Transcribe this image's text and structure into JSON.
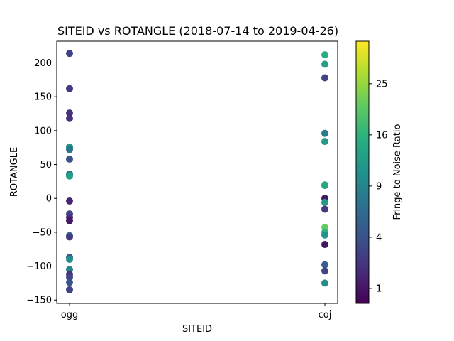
{
  "chart_data": {
    "type": "scatter",
    "title": "SITEID vs ROTANGLE (2018-07-14 to 2019-04-26)",
    "xlabel": "SITEID",
    "ylabel": "ROTANGLE",
    "categories": [
      "ogg",
      "coj"
    ],
    "ylim": [
      -155,
      232
    ],
    "yticks": [
      200,
      150,
      100,
      50,
      0,
      -50,
      -100,
      -150
    ],
    "grid": false,
    "colorbar": {
      "label": "Fringe to Noise Ratio",
      "colormap": "viridis",
      "scale": "sqrt",
      "range": [
        0.5,
        34
      ],
      "ticks": [
        1,
        4,
        9,
        16,
        25
      ]
    },
    "points": [
      {
        "x": "ogg",
        "y": 214,
        "c": 3
      },
      {
        "x": "ogg",
        "y": 162,
        "c": 2.5
      },
      {
        "x": "ogg",
        "y": 126,
        "c": 2
      },
      {
        "x": "ogg",
        "y": 118,
        "c": 2
      },
      {
        "x": "ogg",
        "y": 76,
        "c": 12
      },
      {
        "x": "ogg",
        "y": 74,
        "c": 10
      },
      {
        "x": "ogg",
        "y": 72,
        "c": 7
      },
      {
        "x": "ogg",
        "y": 58,
        "c": 4
      },
      {
        "x": "ogg",
        "y": 36,
        "c": 5
      },
      {
        "x": "ogg",
        "y": 35,
        "c": 9
      },
      {
        "x": "ogg",
        "y": 33,
        "c": 13
      },
      {
        "x": "ogg",
        "y": -4,
        "c": 1.5
      },
      {
        "x": "ogg",
        "y": -23,
        "c": 3
      },
      {
        "x": "ogg",
        "y": -28,
        "c": 2
      },
      {
        "x": "ogg",
        "y": -33,
        "c": 1
      },
      {
        "x": "ogg",
        "y": -55,
        "c": 6
      },
      {
        "x": "ogg",
        "y": -57,
        "c": 2.5
      },
      {
        "x": "ogg",
        "y": -87,
        "c": 5
      },
      {
        "x": "ogg",
        "y": -90,
        "c": 10
      },
      {
        "x": "ogg",
        "y": -105,
        "c": 9
      },
      {
        "x": "ogg",
        "y": -112,
        "c": 2
      },
      {
        "x": "ogg",
        "y": -117,
        "c": 3
      },
      {
        "x": "ogg",
        "y": -124,
        "c": 4
      },
      {
        "x": "ogg",
        "y": -135,
        "c": 3
      },
      {
        "x": "coj",
        "y": 212,
        "c": 15
      },
      {
        "x": "coj",
        "y": 198,
        "c": 13
      },
      {
        "x": "coj",
        "y": 178,
        "c": 3
      },
      {
        "x": "coj",
        "y": 96,
        "c": 8
      },
      {
        "x": "coj",
        "y": 84,
        "c": 12
      },
      {
        "x": "coj",
        "y": 20,
        "c": 16
      },
      {
        "x": "coj",
        "y": 19,
        "c": 14
      },
      {
        "x": "coj",
        "y": 0,
        "c": 1
      },
      {
        "x": "coj",
        "y": -6,
        "c": 12
      },
      {
        "x": "coj",
        "y": -16,
        "c": 2.5
      },
      {
        "x": "coj",
        "y": -43,
        "c": 21
      },
      {
        "x": "coj",
        "y": -50,
        "c": 16
      },
      {
        "x": "coj",
        "y": -54,
        "c": 11
      },
      {
        "x": "coj",
        "y": -68,
        "c": 1
      },
      {
        "x": "coj",
        "y": -98,
        "c": 5
      },
      {
        "x": "coj",
        "y": -107,
        "c": 3
      },
      {
        "x": "coj",
        "y": -125,
        "c": 10
      }
    ]
  }
}
